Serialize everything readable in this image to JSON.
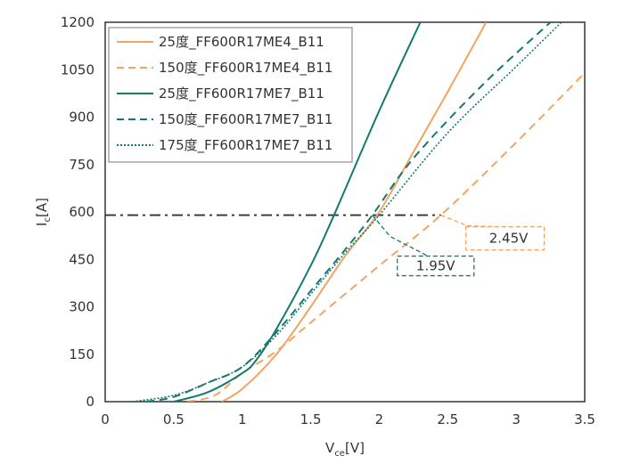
{
  "chart_data": {
    "type": "line",
    "title": "",
    "xlabel": {
      "main": "V",
      "sub": "ce",
      "unit": "[V]"
    },
    "ylabel": {
      "main": "I",
      "sub": "c",
      "unit": "[A]"
    },
    "xlim": [
      0,
      3.5
    ],
    "ylim": [
      0,
      1200
    ],
    "xticks": [
      "0",
      "0.5",
      "1",
      "1.5",
      "2",
      "2.5",
      "3",
      "3.5"
    ],
    "yticks": [
      "0",
      "150",
      "300",
      "450",
      "600",
      "750",
      "900",
      "1050",
      "1200"
    ],
    "grid": false,
    "legend_position": "top-left",
    "series": [
      {
        "name": "25度_FF600R17ME4_B11",
        "color": "#f4a460",
        "style": "solid",
        "x": [
          0.85,
          1.0,
          1.25,
          1.5,
          1.75,
          2.0,
          2.25,
          2.5,
          2.78
        ],
        "y": [
          0,
          40,
          150,
          300,
          460,
          600,
          790,
          980,
          1200
        ]
      },
      {
        "name": "150度_FF600R17ME4_B11",
        "color": "#f4a460",
        "style": "dashed",
        "x": [
          0.6,
          0.8,
          1.0,
          1.25,
          1.5,
          2.0,
          2.45,
          3.0,
          3.5
        ],
        "y": [
          0,
          20,
          90,
          160,
          250,
          430,
          590,
          820,
          1040
        ]
      },
      {
        "name": "25度_FF600R17ME7_B11",
        "color": "#147a6e",
        "style": "solid",
        "x": [
          0.5,
          0.75,
          1.0,
          1.1,
          1.25,
          1.5,
          1.67,
          2.0,
          2.3
        ],
        "y": [
          0,
          30,
          90,
          130,
          230,
          430,
          590,
          920,
          1200
        ]
      },
      {
        "name": "150度_FF600R17ME7_B11",
        "color": "#147a6e",
        "style": "dashed",
        "x": [
          0.3,
          0.5,
          0.75,
          1.0,
          1.25,
          1.5,
          1.75,
          1.95,
          2.25,
          2.75,
          3.25
        ],
        "y": [
          0,
          15,
          60,
          110,
          220,
          350,
          480,
          590,
          770,
          1000,
          1200
        ]
      },
      {
        "name": "175度_FF600R17ME7_B11",
        "color": "#147a6e",
        "style": "dotted",
        "x": [
          0.2,
          0.5,
          0.75,
          1.0,
          1.25,
          1.5,
          1.75,
          2.0,
          2.5,
          3.0,
          3.33
        ],
        "y": [
          0,
          20,
          60,
          110,
          210,
          340,
          470,
          590,
          850,
          1060,
          1200
        ]
      }
    ],
    "reference_line": {
      "y": 590,
      "x": [
        0,
        2.45
      ],
      "color": "#333333",
      "style": "dash-dot"
    },
    "annotations": [
      {
        "text": "2.45V",
        "x": 2.45,
        "y": 590,
        "color": "#f4a460"
      },
      {
        "text": "1.95V",
        "x": 1.95,
        "y": 590,
        "color": "#147a6e"
      }
    ]
  }
}
